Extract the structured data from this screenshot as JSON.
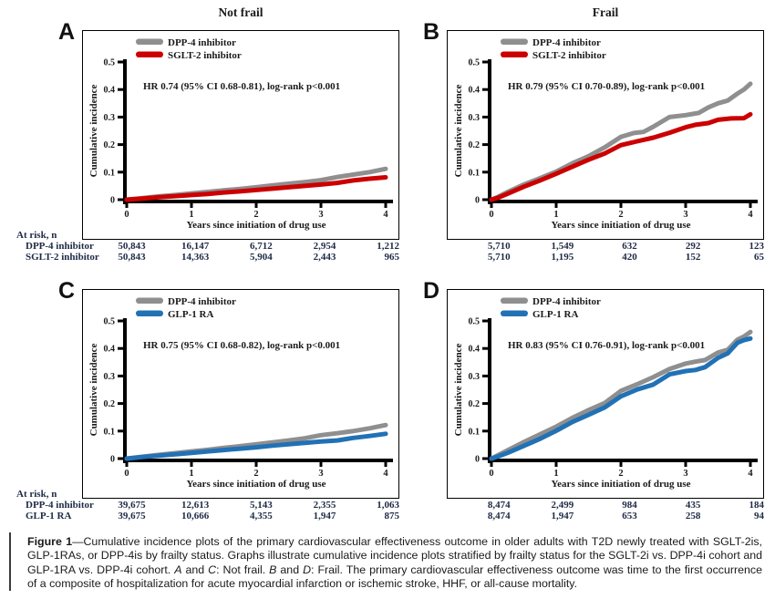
{
  "figure_title": "Figure 1",
  "colors": {
    "dpp4": "#8f8f8f",
    "sglt2": "#cc0000",
    "glp1": "#2171b5",
    "axis": "#000000",
    "plot_text": "#1a1a1a",
    "risk_text": "#1e2a45"
  },
  "chart_data": [
    {
      "type": "line",
      "panel": "A",
      "column_title": "Not frail",
      "annotation": "HR 0.74 (95% CI 0.68-0.81), log-rank p<0.001",
      "xlabel": "Years since initiation of drug use",
      "ylabel": "Cumulative incidence",
      "xlim": [
        0,
        4
      ],
      "ylim": [
        0,
        0.5
      ],
      "x_ticks": [
        "0",
        "1",
        "2",
        "3",
        "4"
      ],
      "y_ticks": [
        "0",
        "0.1",
        "0.2",
        "0.3",
        "0.4",
        "0.5"
      ],
      "legend_position": "top-left-inside",
      "grid": false,
      "series": [
        {
          "name": "DPP-4 inhibitor",
          "color_key": "dpp4",
          "points": [
            [
              0,
              0
            ],
            [
              0.25,
              0.006
            ],
            [
              0.5,
              0.012
            ],
            [
              0.75,
              0.017
            ],
            [
              1,
              0.023
            ],
            [
              1.25,
              0.028
            ],
            [
              1.5,
              0.034
            ],
            [
              1.75,
              0.039
            ],
            [
              2,
              0.045
            ],
            [
              2.25,
              0.052
            ],
            [
              2.5,
              0.058
            ],
            [
              2.75,
              0.064
            ],
            [
              3,
              0.071
            ],
            [
              3.25,
              0.082
            ],
            [
              3.5,
              0.091
            ],
            [
              3.75,
              0.1
            ],
            [
              4,
              0.112
            ]
          ]
        },
        {
          "name": "SGLT-2 inhibitor",
          "color_key": "sglt2",
          "points": [
            [
              0,
              0
            ],
            [
              0.25,
              0.004
            ],
            [
              0.5,
              0.009
            ],
            [
              0.75,
              0.013
            ],
            [
              1,
              0.017
            ],
            [
              1.25,
              0.021
            ],
            [
              1.5,
              0.026
            ],
            [
              1.75,
              0.03
            ],
            [
              2,
              0.035
            ],
            [
              2.25,
              0.04
            ],
            [
              2.5,
              0.045
            ],
            [
              2.75,
              0.05
            ],
            [
              3,
              0.055
            ],
            [
              3.25,
              0.061
            ],
            [
              3.5,
              0.07
            ],
            [
              3.75,
              0.076
            ],
            [
              4,
              0.081
            ]
          ]
        }
      ],
      "at_risk_header": "At risk, n",
      "at_risk": {
        "rows": [
          {
            "label": "DPP-4 inhibitor",
            "values": [
              "50,843",
              "16,147",
              "6,712",
              "2,954",
              "1,212"
            ]
          },
          {
            "label": "SGLT-2 inhibitor",
            "values": [
              "50,843",
              "14,363",
              "5,904",
              "2,443",
              "965"
            ]
          }
        ]
      }
    },
    {
      "type": "line",
      "panel": "B",
      "column_title": "Frail",
      "annotation": "HR 0.79 (95% CI 0.70-0.89), log-rank p<0.001",
      "xlabel": "Years since initiation of drug use",
      "ylabel": "Cumulative incidence",
      "xlim": [
        0,
        4
      ],
      "ylim": [
        0,
        0.5
      ],
      "x_ticks": [
        "0",
        "1",
        "2",
        "3",
        "4"
      ],
      "y_ticks": [
        "0",
        "0.1",
        "0.2",
        "0.3",
        "0.4",
        "0.5"
      ],
      "legend_position": "top-left-inside",
      "grid": false,
      "series": [
        {
          "name": "DPP-4 inhibitor",
          "color_key": "dpp4",
          "points": [
            [
              0,
              0
            ],
            [
              0.1,
              0.01
            ],
            [
              0.25,
              0.028
            ],
            [
              0.5,
              0.055
            ],
            [
              0.75,
              0.078
            ],
            [
              1,
              0.102
            ],
            [
              1.25,
              0.132
            ],
            [
              1.5,
              0.158
            ],
            [
              1.75,
              0.19
            ],
            [
              2,
              0.228
            ],
            [
              2.2,
              0.242
            ],
            [
              2.35,
              0.246
            ],
            [
              2.5,
              0.265
            ],
            [
              2.75,
              0.3
            ],
            [
              3,
              0.307
            ],
            [
              3.2,
              0.315
            ],
            [
              3.35,
              0.335
            ],
            [
              3.5,
              0.35
            ],
            [
              3.65,
              0.36
            ],
            [
              3.8,
              0.385
            ],
            [
              3.9,
              0.4
            ],
            [
              4,
              0.421
            ]
          ]
        },
        {
          "name": "SGLT-2 inhibitor",
          "color_key": "sglt2",
          "points": [
            [
              0,
              0
            ],
            [
              0.1,
              0.007
            ],
            [
              0.25,
              0.022
            ],
            [
              0.5,
              0.047
            ],
            [
              0.75,
              0.07
            ],
            [
              1,
              0.094
            ],
            [
              1.25,
              0.12
            ],
            [
              1.5,
              0.145
            ],
            [
              1.75,
              0.168
            ],
            [
              2,
              0.198
            ],
            [
              2.25,
              0.212
            ],
            [
              2.5,
              0.225
            ],
            [
              2.75,
              0.243
            ],
            [
              3,
              0.263
            ],
            [
              3.15,
              0.272
            ],
            [
              3.35,
              0.278
            ],
            [
              3.5,
              0.29
            ],
            [
              3.7,
              0.295
            ],
            [
              3.9,
              0.296
            ],
            [
              4,
              0.31
            ]
          ]
        }
      ],
      "at_risk": {
        "rows": [
          {
            "label": "DPP-4 inhibitor",
            "values": [
              "5,710",
              "1,549",
              "632",
              "292",
              "123"
            ]
          },
          {
            "label": "SGLT-2 inhibitor",
            "values": [
              "5,710",
              "1,195",
              "420",
              "152",
              "65"
            ]
          }
        ]
      }
    },
    {
      "type": "line",
      "panel": "C",
      "column_title": "Not frail",
      "annotation": "HR 0.75 (95% CI 0.68-0.82), log-rank p<0.001",
      "xlabel": "Years since initiation of drug use",
      "ylabel": "Cumulative incidence",
      "xlim": [
        0,
        4
      ],
      "ylim": [
        0,
        0.5
      ],
      "x_ticks": [
        "0",
        "1",
        "2",
        "3",
        "4"
      ],
      "y_ticks": [
        "0",
        "0.1",
        "0.2",
        "0.3",
        "0.4",
        "0.5"
      ],
      "legend_position": "top-left-inside",
      "grid": false,
      "series": [
        {
          "name": "DPP-4 inhibitor",
          "color_key": "dpp4",
          "points": [
            [
              0,
              0
            ],
            [
              0.25,
              0.007
            ],
            [
              0.5,
              0.014
            ],
            [
              0.75,
              0.02
            ],
            [
              1,
              0.026
            ],
            [
              1.25,
              0.032
            ],
            [
              1.5,
              0.039
            ],
            [
              1.75,
              0.045
            ],
            [
              2,
              0.052
            ],
            [
              2.25,
              0.059
            ],
            [
              2.5,
              0.066
            ],
            [
              2.75,
              0.074
            ],
            [
              3,
              0.085
            ],
            [
              3.25,
              0.092
            ],
            [
              3.5,
              0.1
            ],
            [
              3.75,
              0.11
            ],
            [
              4,
              0.122
            ]
          ]
        },
        {
          "name": "GLP-1 RA",
          "color_key": "glp1",
          "points": [
            [
              0,
              0
            ],
            [
              0.25,
              0.006
            ],
            [
              0.5,
              0.011
            ],
            [
              0.75,
              0.016
            ],
            [
              1,
              0.021
            ],
            [
              1.25,
              0.026
            ],
            [
              1.5,
              0.031
            ],
            [
              1.75,
              0.036
            ],
            [
              2,
              0.041
            ],
            [
              2.25,
              0.047
            ],
            [
              2.5,
              0.052
            ],
            [
              2.75,
              0.057
            ],
            [
              3,
              0.062
            ],
            [
              3.25,
              0.066
            ],
            [
              3.5,
              0.075
            ],
            [
              3.75,
              0.082
            ],
            [
              4,
              0.09
            ]
          ]
        }
      ],
      "at_risk_header": "At risk, n",
      "at_risk": {
        "rows": [
          {
            "label": "DPP-4 inhibitor",
            "values": [
              "39,675",
              "12,613",
              "5,143",
              "2,355",
              "1,063"
            ]
          },
          {
            "label": "GLP-1 RA",
            "values": [
              "39,675",
              "10,666",
              "4,355",
              "1,947",
              "875"
            ]
          }
        ]
      }
    },
    {
      "type": "line",
      "panel": "D",
      "column_title": "Frail",
      "annotation": "HR 0.83 (95% CI 0.76-0.91), log-rank p<0.001",
      "xlabel": "Years since initiation of drug use",
      "ylabel": "Cumulative incidence",
      "xlim": [
        0,
        4
      ],
      "ylim": [
        0,
        0.5
      ],
      "x_ticks": [
        "0",
        "1",
        "2",
        "3",
        "4"
      ],
      "y_ticks": [
        "0",
        "0.1",
        "0.2",
        "0.3",
        "0.4",
        "0.5"
      ],
      "legend_position": "top-left-inside",
      "grid": false,
      "series": [
        {
          "name": "DPP-4 inhibitor",
          "color_key": "dpp4",
          "points": [
            [
              0,
              0
            ],
            [
              0.1,
              0.012
            ],
            [
              0.25,
              0.03
            ],
            [
              0.5,
              0.06
            ],
            [
              0.75,
              0.088
            ],
            [
              1,
              0.116
            ],
            [
              1.25,
              0.148
            ],
            [
              1.5,
              0.176
            ],
            [
              1.75,
              0.202
            ],
            [
              2,
              0.246
            ],
            [
              2.25,
              0.27
            ],
            [
              2.5,
              0.296
            ],
            [
              2.75,
              0.325
            ],
            [
              3,
              0.345
            ],
            [
              3.15,
              0.352
            ],
            [
              3.3,
              0.358
            ],
            [
              3.5,
              0.385
            ],
            [
              3.65,
              0.395
            ],
            [
              3.8,
              0.432
            ],
            [
              3.9,
              0.443
            ],
            [
              4,
              0.46
            ]
          ]
        },
        {
          "name": "GLP-1 RA",
          "color_key": "glp1",
          "points": [
            [
              0,
              0
            ],
            [
              0.1,
              0.008
            ],
            [
              0.25,
              0.021
            ],
            [
              0.5,
              0.046
            ],
            [
              0.75,
              0.072
            ],
            [
              1,
              0.101
            ],
            [
              1.25,
              0.133
            ],
            [
              1.5,
              0.159
            ],
            [
              1.75,
              0.186
            ],
            [
              2,
              0.226
            ],
            [
              2.25,
              0.251
            ],
            [
              2.5,
              0.269
            ],
            [
              2.75,
              0.306
            ],
            [
              3,
              0.318
            ],
            [
              3.15,
              0.322
            ],
            [
              3.3,
              0.332
            ],
            [
              3.5,
              0.366
            ],
            [
              3.65,
              0.382
            ],
            [
              3.8,
              0.421
            ],
            [
              3.9,
              0.43
            ],
            [
              4,
              0.436
            ]
          ]
        }
      ],
      "at_risk": {
        "rows": [
          {
            "label": "DPP-4 inhibitor",
            "values": [
              "8,474",
              "2,499",
              "984",
              "435",
              "184"
            ]
          },
          {
            "label": "GLP-1 RA",
            "values": [
              "8,474",
              "1,947",
              "653",
              "258",
              "94"
            ]
          }
        ]
      }
    }
  ],
  "caption": {
    "segments": [
      {
        "text": "Figure 1",
        "bold": true
      },
      {
        "text": "—Cumulative incidence plots of the primary cardiovascular effectiveness outcome in older adults with T2D newly treated with SGLT-2is, GLP-1RAs, or DPP-4is by frailty status. Graphs illustrate cumulative incidence plots stratified by frailty status for the SGLT-2i vs. DPP-4i cohort and GLP-1RA vs. DPP-4i cohort. "
      },
      {
        "text": "A",
        "italic": true
      },
      {
        "text": " and "
      },
      {
        "text": "C",
        "italic": true
      },
      {
        "text": ": Not frail. "
      },
      {
        "text": "B",
        "italic": true
      },
      {
        "text": " and "
      },
      {
        "text": "D",
        "italic": true
      },
      {
        "text": ": Frail. The primary cardiovascular effectiveness outcome was time to the first occurrence of a composite of hospitalization for acute myocardial infarction or ischemic stroke, HHF, or all-cause mortality."
      }
    ]
  }
}
